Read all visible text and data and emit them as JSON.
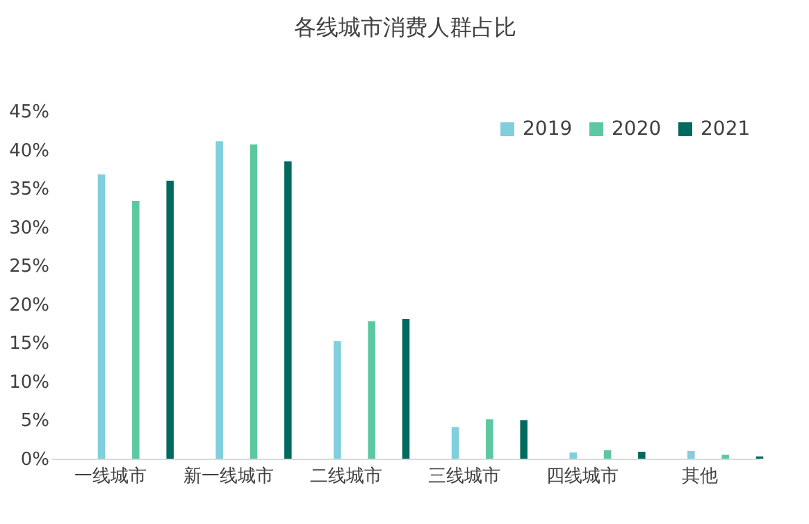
{
  "chart_data": {
    "type": "bar",
    "title": "各线城市消费人群占比",
    "categories": [
      "一线城市",
      "新一线城市",
      "二线城市",
      "三线城市",
      "四线城市",
      "其他"
    ],
    "series": [
      {
        "name": "2019",
        "color": "#7fcfdc",
        "values": [
          36.8,
          41.1,
          15.2,
          4.1,
          0.8,
          1.0
        ]
      },
      {
        "name": "2020",
        "color": "#5cc8a0",
        "values": [
          33.4,
          40.7,
          17.8,
          5.1,
          1.1,
          0.5
        ]
      },
      {
        "name": "2021",
        "color": "#006a5e",
        "values": [
          36.0,
          38.5,
          18.1,
          5.0,
          0.9,
          0.3
        ]
      }
    ],
    "ylim": [
      0,
      45
    ],
    "yticks": [
      {
        "value": 0,
        "label": "0%"
      },
      {
        "value": 5,
        "label": "5%"
      },
      {
        "value": 10,
        "label": "10%"
      },
      {
        "value": 15,
        "label": "15%"
      },
      {
        "value": 20,
        "label": "20%"
      },
      {
        "value": 25,
        "label": "25%"
      },
      {
        "value": 30,
        "label": "30%"
      },
      {
        "value": 35,
        "label": "35%"
      },
      {
        "value": 40,
        "label": "40%"
      },
      {
        "value": 45,
        "label": "45%"
      }
    ],
    "grid": false,
    "legend": "top right"
  }
}
